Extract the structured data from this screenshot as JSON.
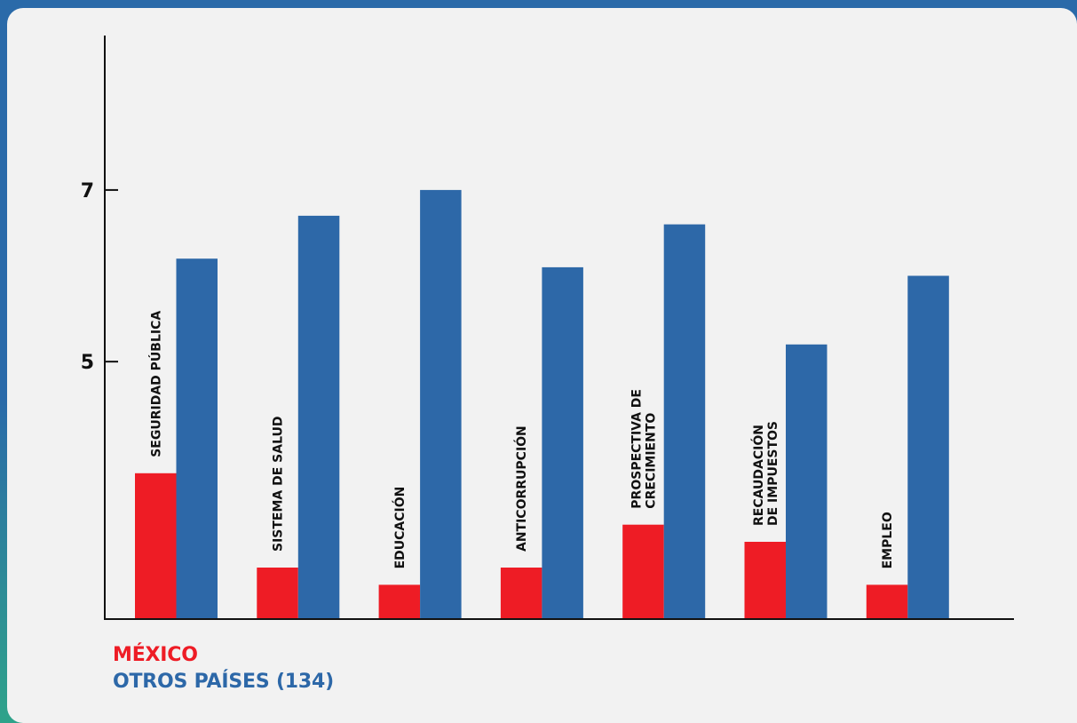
{
  "chart_data": {
    "type": "bar",
    "categories": [
      [
        "SEGURIDAD PÚBLICA"
      ],
      [
        "SISTEMA DE SALUD"
      ],
      [
        "EDUCACIÓN"
      ],
      [
        "ANTICORRUPCIÓN"
      ],
      [
        "PROSPECTIVA DE",
        "CRECIMIENTO"
      ],
      [
        "RECAUDACIÓN",
        "DE IMPUESTOS"
      ],
      [
        "EMPLEO"
      ]
    ],
    "series": [
      {
        "name": "MÉXICO",
        "color": "#ee1c25",
        "values": [
          3.7,
          2.6,
          2.4,
          2.6,
          3.1,
          2.9,
          2.4
        ]
      },
      {
        "name": "OTROS PAÍSES (134)",
        "color": "#2d68a8",
        "values": [
          6.2,
          6.7,
          7.0,
          6.1,
          6.6,
          5.2,
          6.0
        ]
      }
    ],
    "y_ticks": [
      5,
      7
    ],
    "ylim": [
      2.0,
      8.8
    ],
    "title": "",
    "xlabel": "",
    "ylabel": "",
    "grid": false,
    "legend_position": "bottom-left"
  }
}
